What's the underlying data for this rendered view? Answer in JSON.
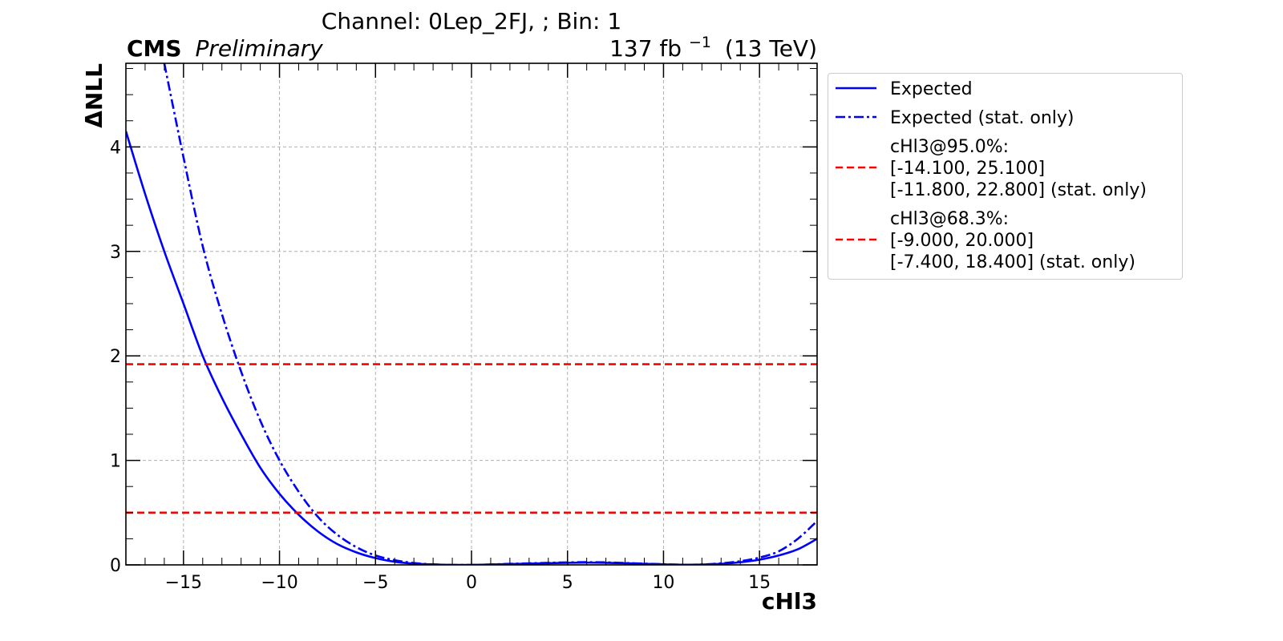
{
  "chart_data": {
    "type": "line",
    "title": "Channel: 0Lep_2FJ, ; Bin: 1",
    "cms_label": "CMS",
    "cms_sublabel": "Preliminary",
    "lumi_label": "137 fb",
    "lumi_exponent": "−1",
    "lumi_energy": "(13 TeV)",
    "xlabel": "cHl3",
    "ylabel": "ΔNLL",
    "xlim": [
      -18,
      18
    ],
    "ylim": [
      0,
      4.8
    ],
    "xticks": [
      -15,
      -10,
      -5,
      0,
      5,
      10,
      15
    ],
    "xtick_labels": [
      "−15",
      "−10",
      "−5",
      "0",
      "5",
      "10",
      "15"
    ],
    "yticks": [
      0,
      1,
      2,
      3,
      4
    ],
    "ytick_labels": [
      "0",
      "1",
      "2",
      "3",
      "4"
    ],
    "grid": true,
    "legend_position": "outside-right",
    "series": [
      {
        "name": "Expected",
        "color": "#0000ff",
        "style": "solid",
        "x": [
          -18,
          -17,
          -16,
          -15,
          -14,
          -13,
          -12,
          -11,
          -10,
          -9,
          -8,
          -7,
          -6,
          -5,
          -4,
          -3,
          -2,
          -1,
          0,
          1,
          2,
          3,
          4,
          5,
          6,
          7,
          8,
          9,
          10,
          11,
          12,
          13,
          14,
          15,
          16,
          17,
          18
        ],
        "y": [
          4.15,
          3.55,
          3.0,
          2.5,
          2.0,
          1.6,
          1.25,
          0.93,
          0.68,
          0.48,
          0.32,
          0.2,
          0.12,
          0.065,
          0.03,
          0.012,
          0.004,
          0.0,
          0.0,
          0.003,
          0.008,
          0.012,
          0.016,
          0.02,
          0.022,
          0.02,
          0.016,
          0.01,
          0.005,
          0.002,
          0.003,
          0.01,
          0.025,
          0.05,
          0.09,
          0.15,
          0.25
        ]
      },
      {
        "name": "Expected (stat. only)",
        "color": "#0000ff",
        "style": "dashdot",
        "x": [
          -16,
          -15,
          -14,
          -13,
          -12,
          -11,
          -10,
          -9,
          -8,
          -7,
          -6,
          -5,
          -4,
          -3,
          -2,
          -1,
          0,
          1,
          2,
          3,
          4,
          5,
          6,
          7,
          8,
          9,
          10,
          11,
          12,
          13,
          14,
          15,
          16,
          17,
          18
        ],
        "y": [
          4.8,
          3.9,
          3.05,
          2.4,
          1.85,
          1.38,
          1.0,
          0.7,
          0.46,
          0.29,
          0.17,
          0.09,
          0.045,
          0.018,
          0.005,
          0.0,
          0.0,
          0.004,
          0.01,
          0.015,
          0.02,
          0.024,
          0.026,
          0.024,
          0.018,
          0.012,
          0.006,
          0.002,
          0.004,
          0.015,
          0.035,
          0.07,
          0.13,
          0.25,
          0.42
        ]
      }
    ],
    "hlines": [
      {
        "y": 1.92,
        "color": "#ff0000",
        "style": "dashed"
      },
      {
        "y": 0.5,
        "color": "#ff0000",
        "style": "dashed"
      }
    ],
    "legend": [
      {
        "style": "solid",
        "color": "#0000ff",
        "lines": [
          "Expected"
        ]
      },
      {
        "style": "dashdot",
        "color": "#0000ff",
        "lines": [
          "Expected (stat. only)"
        ]
      },
      {
        "style": "dashed",
        "color": "#ff0000",
        "lines": [
          "cHl3@95.0%:",
          "[-14.100, 25.100]",
          "[-11.800, 22.800] (stat. only)"
        ]
      },
      {
        "style": "dashed",
        "color": "#ff0000",
        "lines": [
          "cHl3@68.3%:",
          "[-9.000, 20.000]",
          "[-7.400, 18.400] (stat. only)"
        ]
      }
    ]
  }
}
